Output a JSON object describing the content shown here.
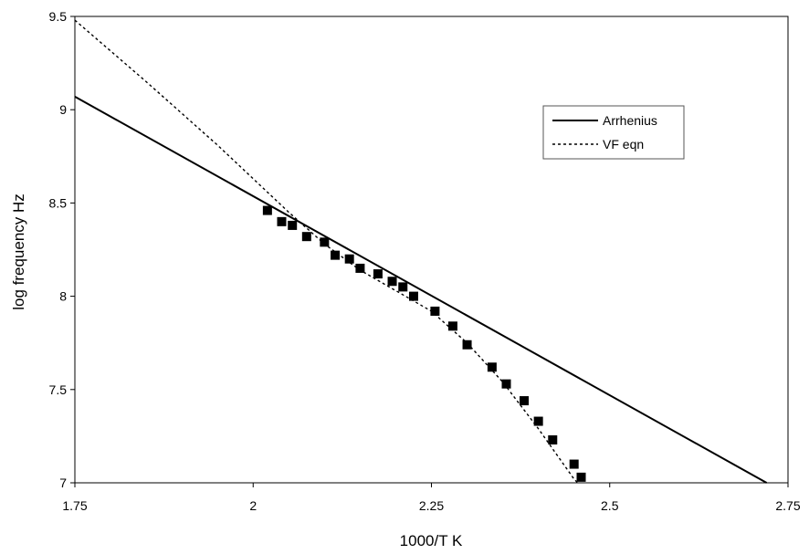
{
  "chart_data": {
    "type": "scatter",
    "title": "",
    "xlabel": "1000/T K",
    "ylabel": "log frequency Hz",
    "xlim": [
      1.75,
      2.75
    ],
    "ylim": [
      7,
      9.5
    ],
    "x_ticks": [
      "1.75",
      "2",
      "2.25",
      "2.5",
      "2.75"
    ],
    "y_ticks": [
      "7",
      "7.5",
      "8",
      "8.5",
      "9",
      "9.5"
    ],
    "grid": false,
    "legend_position": "top-right",
    "series": [
      {
        "type": "scatter",
        "marker": "square",
        "color": "#000000",
        "points": [
          [
            2.02,
            8.46
          ],
          [
            2.04,
            8.4
          ],
          [
            2.055,
            8.38
          ],
          [
            2.075,
            8.32
          ],
          [
            2.1,
            8.29
          ],
          [
            2.115,
            8.22
          ],
          [
            2.135,
            8.2
          ],
          [
            2.15,
            8.15
          ],
          [
            2.175,
            8.12
          ],
          [
            2.195,
            8.08
          ],
          [
            2.21,
            8.05
          ],
          [
            2.225,
            8.0
          ],
          [
            2.255,
            7.92
          ],
          [
            2.28,
            7.84
          ],
          [
            2.3,
            7.74
          ],
          [
            2.335,
            7.62
          ],
          [
            2.355,
            7.53
          ],
          [
            2.38,
            7.44
          ],
          [
            2.4,
            7.33
          ],
          [
            2.42,
            7.23
          ],
          [
            2.45,
            7.1
          ],
          [
            2.46,
            7.03
          ]
        ]
      },
      {
        "name": "Arrhenius",
        "type": "line",
        "style": "solid",
        "color": "#000000",
        "x": [
          1.75,
          2.72
        ],
        "y": [
          9.07,
          7.0
        ]
      },
      {
        "name": "VF eqn",
        "type": "line",
        "style": "dotted",
        "color": "#000000",
        "x": [
          1.75,
          1.85,
          1.95,
          2.05,
          2.1,
          2.15,
          2.2,
          2.25,
          2.3,
          2.35,
          2.4,
          2.45,
          2.455
        ],
        "y": [
          9.48,
          9.15,
          8.81,
          8.45,
          8.28,
          8.14,
          8.03,
          7.92,
          7.75,
          7.54,
          7.29,
          7.02,
          7.0
        ]
      }
    ]
  }
}
